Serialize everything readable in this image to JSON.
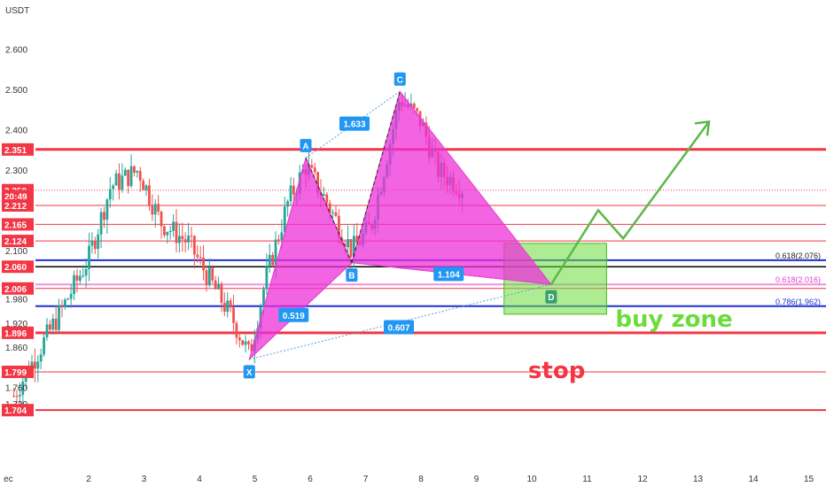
{
  "chart_data": {
    "type": "candlestick",
    "currency": "USDT",
    "x_ticks": [
      {
        "d": 0.55,
        "label": "ec"
      },
      {
        "d": 2,
        "label": "2"
      },
      {
        "d": 3,
        "label": "3"
      },
      {
        "d": 4,
        "label": "4"
      },
      {
        "d": 5,
        "label": "5"
      },
      {
        "d": 6,
        "label": "6"
      },
      {
        "d": 7,
        "label": "7"
      },
      {
        "d": 8,
        "label": "8"
      },
      {
        "d": 9,
        "label": "9"
      },
      {
        "d": 10,
        "label": "10"
      },
      {
        "d": 11,
        "label": "11"
      },
      {
        "d": 12,
        "label": "12"
      },
      {
        "d": 13,
        "label": "13"
      },
      {
        "d": 14,
        "label": "14"
      },
      {
        "d": 15,
        "label": "15"
      }
    ],
    "y_ticks": [
      {
        "v": 2.6,
        "label": "2.600"
      },
      {
        "v": 2.5,
        "label": "2.500"
      },
      {
        "v": 2.4,
        "label": "2.400"
      },
      {
        "v": 2.3,
        "label": "2.300"
      },
      {
        "v": 2.1,
        "label": "2.100"
      },
      {
        "v": 1.98,
        "label": "1.980"
      },
      {
        "v": 1.92,
        "label": "1.920"
      },
      {
        "v": 1.86,
        "label": "1.860"
      },
      {
        "v": 1.76,
        "label": "1.760"
      },
      {
        "v": 1.72,
        "label": "1.720"
      }
    ],
    "price_badges": [
      {
        "v": 2.351,
        "label": "2.351",
        "color": "#f23645"
      },
      {
        "v": 2.25,
        "label": "2.250",
        "color": "#f23645"
      },
      {
        "v": 2.235,
        "label": "20:49",
        "color": "#f23645"
      },
      {
        "v": 2.212,
        "label": "2.212",
        "color": "#f23645"
      },
      {
        "v": 2.165,
        "label": "2.165",
        "color": "#f23645"
      },
      {
        "v": 2.124,
        "label": "2.124",
        "color": "#f23645"
      },
      {
        "v": 2.06,
        "label": "2.060",
        "color": "#f23645"
      },
      {
        "v": 2.006,
        "label": "2.006",
        "color": "#f23645"
      },
      {
        "v": 1.896,
        "label": "1.896",
        "color": "#f23645"
      },
      {
        "v": 1.799,
        "label": "1.799",
        "color": "#f23645"
      },
      {
        "v": 1.704,
        "label": "1.704",
        "color": "#f23645"
      }
    ],
    "horizontal_lines": [
      {
        "v": 2.351,
        "color": "#f23645",
        "width": 3
      },
      {
        "v": 2.25,
        "color": "#f23645",
        "width": 1,
        "dotted": true
      },
      {
        "v": 2.212,
        "color": "#f23645",
        "width": 1
      },
      {
        "v": 2.165,
        "color": "#f23645",
        "width": 1
      },
      {
        "v": 2.124,
        "color": "#f23645",
        "width": 1
      },
      {
        "v": 2.076,
        "color": "#1f2fd4",
        "width": 2
      },
      {
        "v": 2.06,
        "color": "#000000",
        "width": 1.5
      },
      {
        "v": 2.016,
        "color": "#f48fe2",
        "width": 2
      },
      {
        "v": 2.006,
        "color": "#f23645",
        "width": 1
      },
      {
        "v": 1.962,
        "color": "#1f2fd4",
        "width": 2
      },
      {
        "v": 1.896,
        "color": "#f23645",
        "width": 3
      },
      {
        "v": 1.799,
        "color": "#f23645",
        "width": 1
      },
      {
        "v": 1.704,
        "color": "#f23645",
        "width": 2
      }
    ],
    "fib_labels": [
      {
        "v": 2.076,
        "label": "0.618(2.076)",
        "color": "#222222"
      },
      {
        "v": 2.016,
        "label": "0.618(2.016)",
        "color": "#e040c8"
      },
      {
        "v": 1.962,
        "label": "0.786(1.962)",
        "color": "#1f2fd4"
      }
    ],
    "pattern_points": [
      {
        "name": "X",
        "d": 4.9,
        "v": 1.83,
        "label": "X"
      },
      {
        "name": "A",
        "d": 5.92,
        "v": 2.33,
        "label": "A"
      },
      {
        "name": "B",
        "d": 6.75,
        "v": 2.07,
        "label": "B"
      },
      {
        "name": "C",
        "d": 7.62,
        "v": 2.495,
        "label": "C"
      },
      {
        "name": "D",
        "d": 10.35,
        "v": 2.016,
        "label": "D"
      }
    ],
    "ratios": [
      {
        "label": "1.633",
        "d": 6.8,
        "v": 2.415
      },
      {
        "label": "0.519",
        "d": 5.7,
        "v": 1.94
      },
      {
        "label": "0.607",
        "d": 7.6,
        "v": 1.91
      },
      {
        "label": "1.104",
        "d": 8.5,
        "v": 2.042
      }
    ],
    "buy_zone": {
      "d1": 9.5,
      "d2": 11.35,
      "v1": 2.118,
      "v2": 1.942,
      "label": "buy zone",
      "color": "#6cdc3a"
    },
    "stop": {
      "d": 10.45,
      "v": 1.805,
      "label": "stop",
      "color": "#f23645"
    },
    "projection": [
      {
        "d": 10.35,
        "v": 2.016
      },
      {
        "d": 11.2,
        "v": 2.2
      },
      {
        "d": 11.65,
        "v": 2.13
      },
      {
        "d": 13.2,
        "v": 2.42
      }
    ],
    "candles_seed": {
      "start_day": 0.65,
      "end_day": 8.8,
      "count": 150
    }
  }
}
